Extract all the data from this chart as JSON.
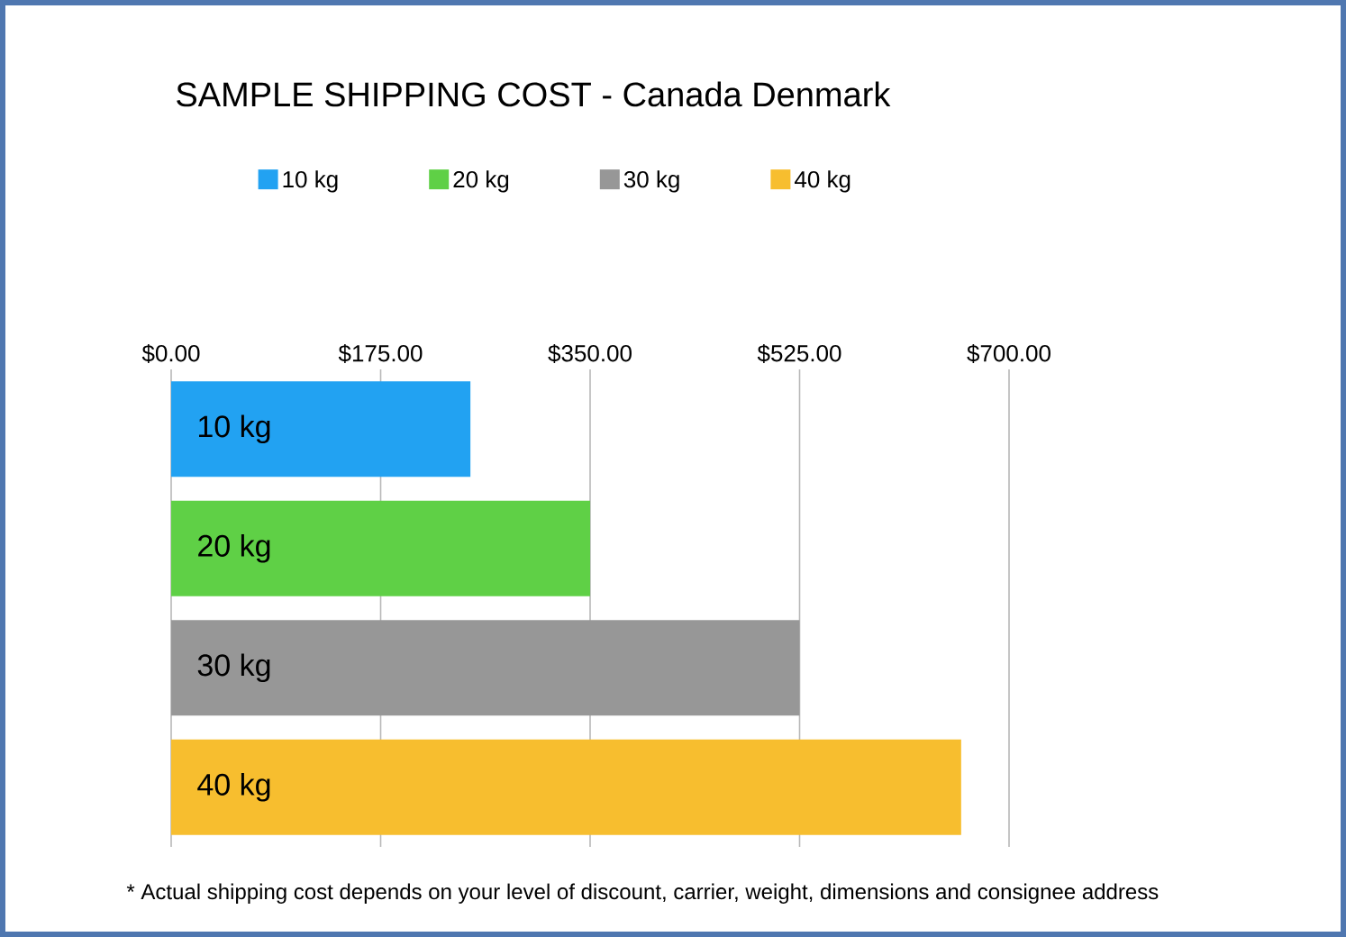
{
  "chart_data": {
    "type": "bar",
    "orientation": "horizontal",
    "title": "SAMPLE SHIPPING COST - Canada Denmark",
    "categories": [
      "10 kg",
      "20 kg",
      "30 kg",
      "40 kg"
    ],
    "series": [
      {
        "name": "10 kg",
        "color": "#22a2f2",
        "values": [
          250,
          null,
          null,
          null
        ]
      },
      {
        "name": "20 kg",
        "color": "#5fd046",
        "values": [
          null,
          350,
          null,
          null
        ]
      },
      {
        "name": "30 kg",
        "color": "#979797",
        "values": [
          null,
          null,
          525,
          null
        ]
      },
      {
        "name": "40 kg",
        "color": "#f7be2f",
        "values": [
          null,
          null,
          null,
          660
        ]
      }
    ],
    "xlim": [
      0,
      700
    ],
    "xticks": [
      {
        "value": 0,
        "label": "$0.00"
      },
      {
        "value": 175,
        "label": "$175.00"
      },
      {
        "value": 350,
        "label": "$350.00"
      },
      {
        "value": 525,
        "label": "$525.00"
      },
      {
        "value": 700,
        "label": "$700.00"
      }
    ],
    "grid": "x",
    "legend": "top",
    "annotations": [
      "* Actual shipping cost depends on your level of discount, carrier, weight, dimensions and consignee address"
    ]
  }
}
